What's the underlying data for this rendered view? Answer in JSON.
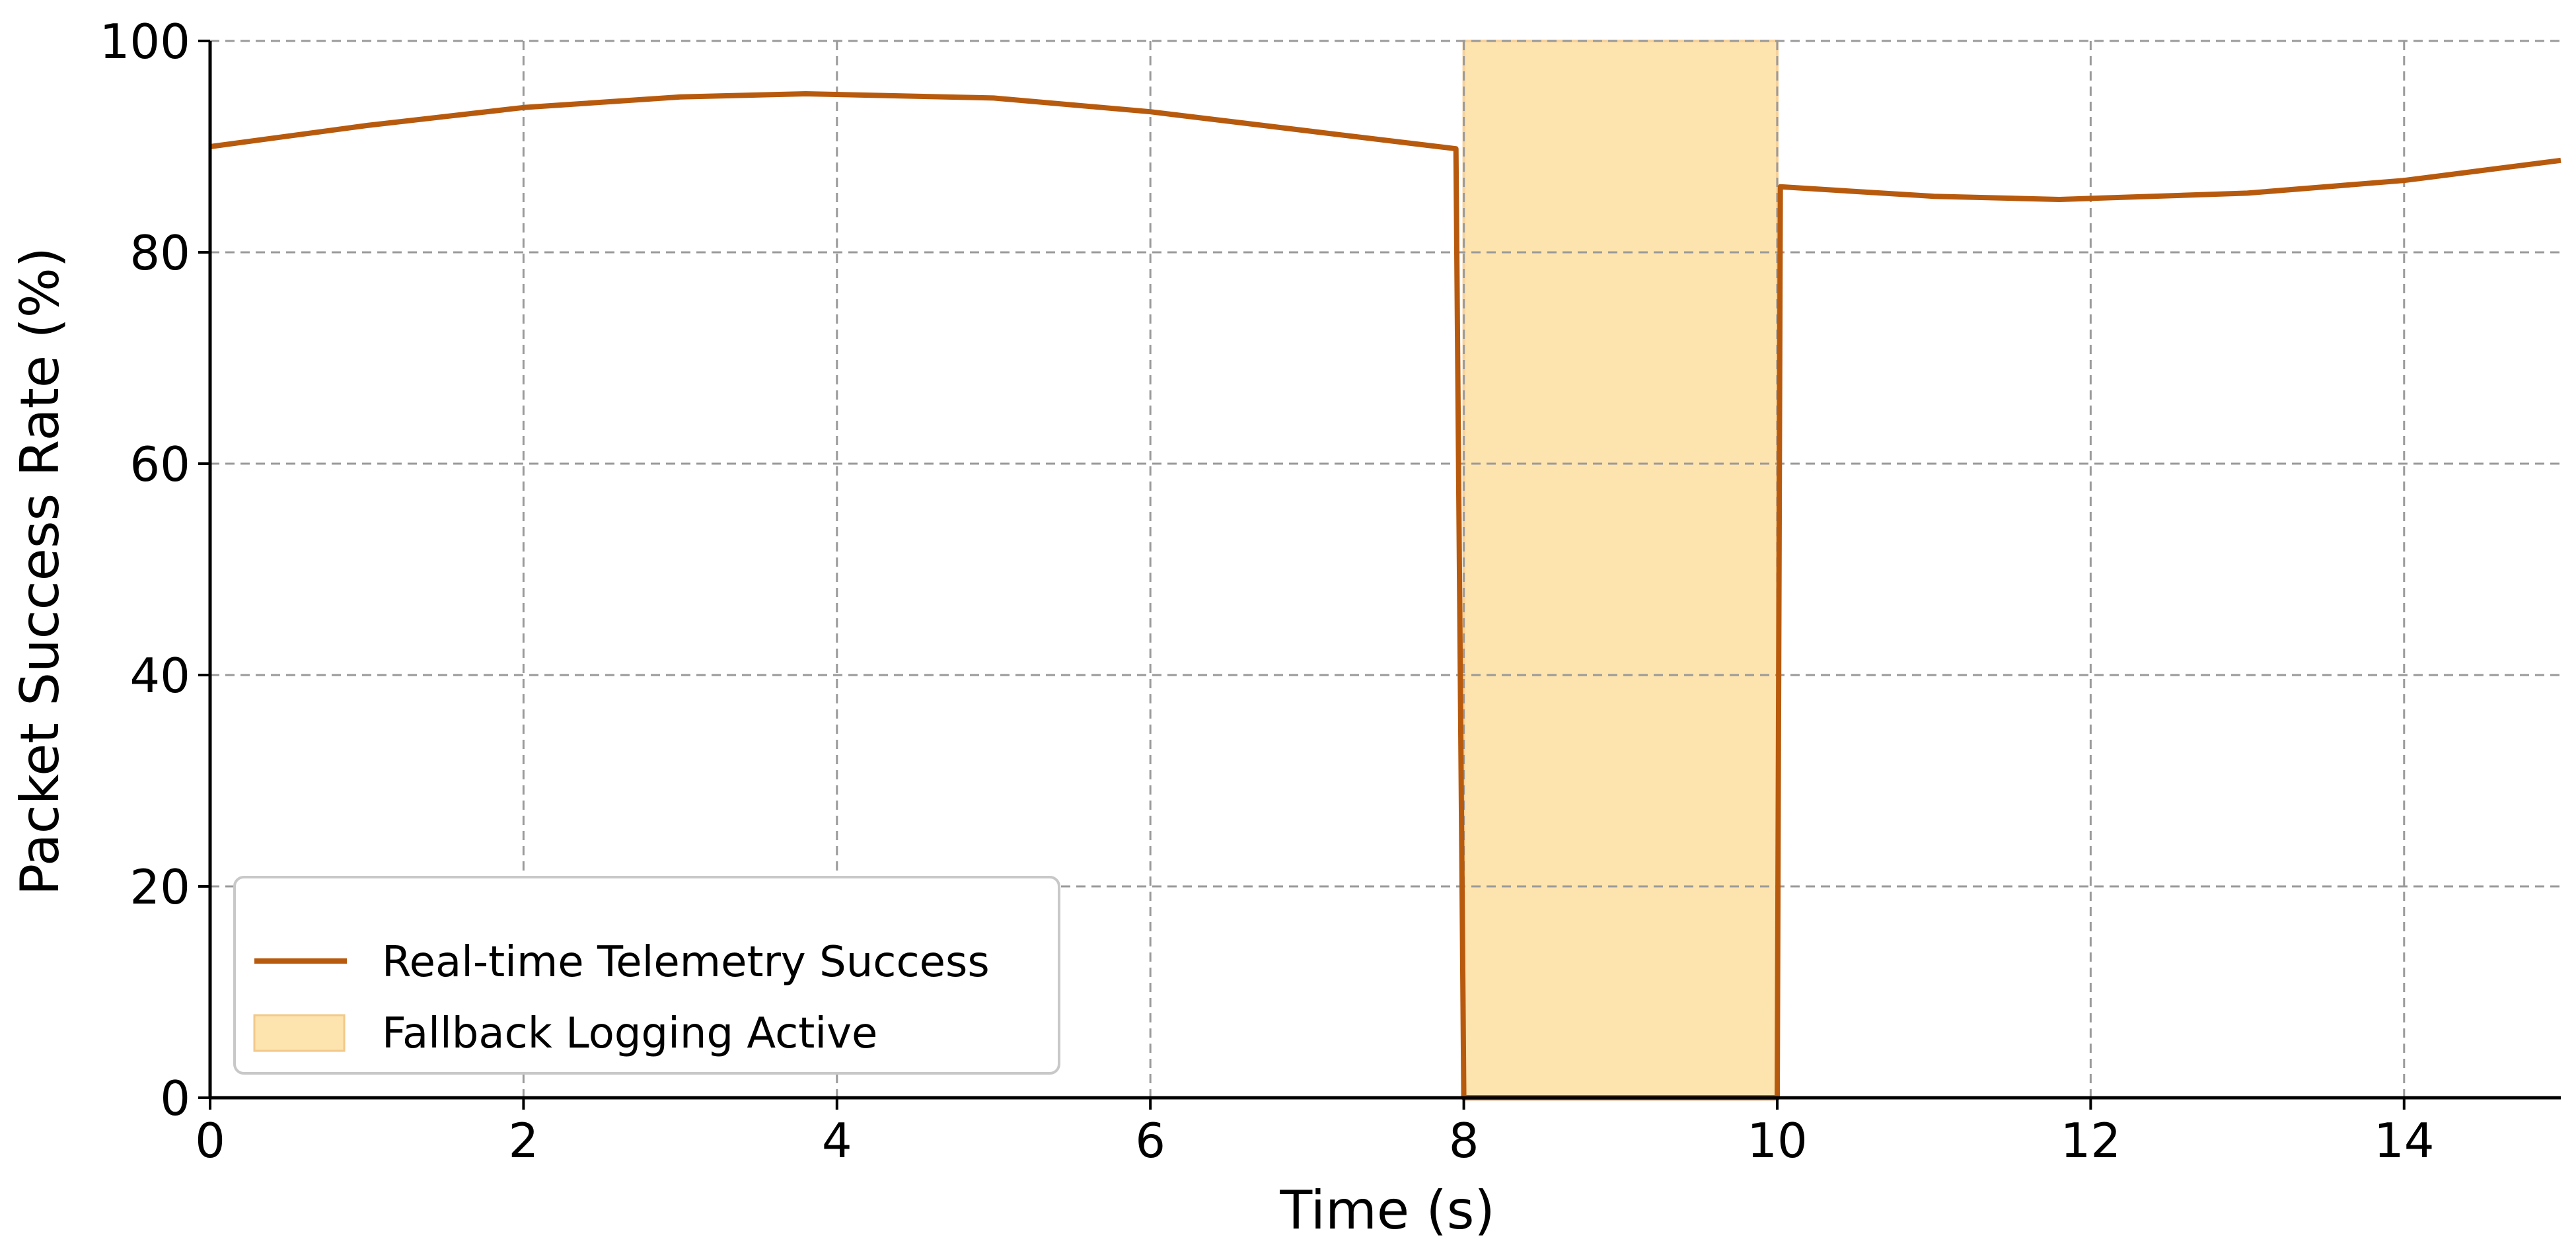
{
  "chart_data": {
    "type": "line",
    "title": "",
    "xlabel": "Time (s)",
    "ylabel": "Packet Success Rate (%)",
    "xlim": [
      0,
      15
    ],
    "ylim": [
      0,
      100
    ],
    "x_ticks": [
      0,
      2,
      4,
      6,
      8,
      10,
      12,
      14
    ],
    "y_ticks": [
      0,
      20,
      40,
      60,
      80,
      100
    ],
    "x_tick_labels": [
      "0",
      "2",
      "4",
      "6",
      "8",
      "10",
      "12",
      "14"
    ],
    "y_tick_labels": [
      "0",
      "20",
      "40",
      "60",
      "80",
      "100"
    ],
    "grid": true,
    "legend_position": "lower-left",
    "series": [
      {
        "name": "Real-time Telemetry Success",
        "color": "#b85a0d",
        "x": [
          0,
          1,
          2,
          3,
          3.8,
          5,
          6,
          7,
          7.95,
          8.0,
          10.0,
          10.02,
          11,
          11.8,
          13,
          14,
          15
        ],
        "y": [
          90.0,
          92.0,
          93.7,
          94.7,
          95.0,
          94.6,
          93.3,
          91.5,
          89.8,
          0,
          0,
          86.2,
          85.3,
          85.0,
          85.6,
          86.8,
          88.7
        ]
      }
    ],
    "shaded_regions": [
      {
        "name": "Fallback Logging Active",
        "x_start": 8,
        "x_end": 10,
        "color": "#fde3ae"
      }
    ]
  }
}
